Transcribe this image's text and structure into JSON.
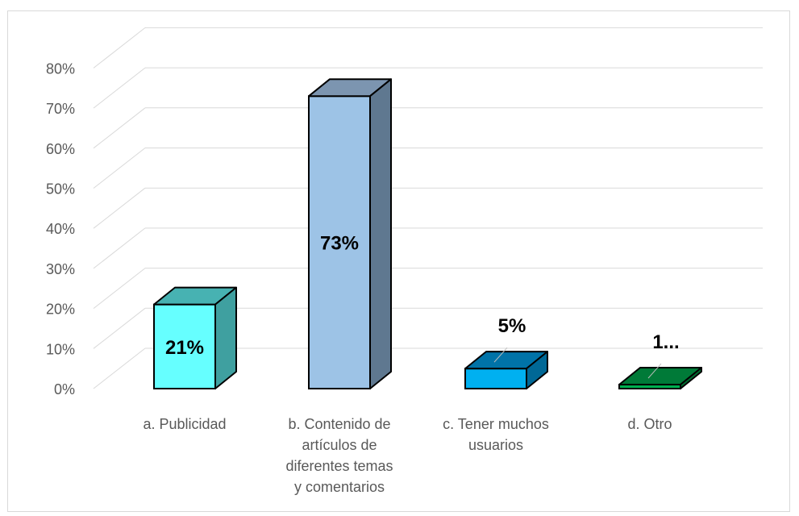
{
  "chart_data": {
    "type": "bar",
    "style": "3d-column",
    "categories": [
      [
        "a. Publicidad"
      ],
      [
        "b. Contenido de",
        "artículos de",
        "diferentes temas",
        "y comentarios"
      ],
      [
        "c. Tener muchos",
        "usuarios"
      ],
      [
        "d. Otro"
      ]
    ],
    "values": [
      21,
      73,
      5,
      1
    ],
    "data_labels": [
      "21%",
      "73%",
      "5%",
      "1..."
    ],
    "colors": {
      "front": [
        "#66FFFF",
        "#9DC3E6",
        "#00B0F0",
        "#00B050"
      ],
      "top": [
        "#47B2B2",
        "#7C95B0",
        "#0073A8",
        "#007A38"
      ],
      "side": [
        "#3FA0A0",
        "#5F7890",
        "#006896",
        "#006B30"
      ]
    },
    "ylim": [
      0,
      80
    ],
    "y_ticks": [
      0,
      10,
      20,
      30,
      40,
      50,
      60,
      70,
      80
    ],
    "y_tick_labels": [
      "0%",
      "10%",
      "20%",
      "30%",
      "40%",
      "50%",
      "60%",
      "70%",
      "80%"
    ],
    "grid": true,
    "legend": "none",
    "title": "",
    "xlabel": "",
    "ylabel": ""
  }
}
